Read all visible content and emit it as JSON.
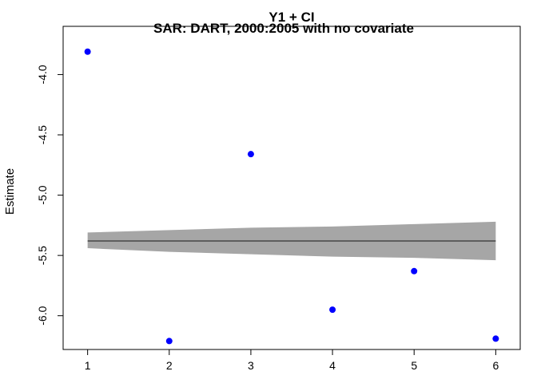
{
  "chart_data": {
    "type": "scatter",
    "title": "Y1 + CI",
    "subtitle": "SAR: DART, 2000:2005 with no covariate",
    "xlabel": "",
    "ylabel": "Estimate",
    "xlim": [
      0.7,
      6.3
    ],
    "ylim": [
      -6.28,
      -3.6
    ],
    "x_ticks": [
      1,
      2,
      3,
      4,
      5,
      6
    ],
    "y_ticks": [
      -4.0,
      -4.5,
      -5.0,
      -5.5,
      -6.0
    ],
    "y_tick_labels": [
      "-4.0",
      "-4.5",
      "-5.0",
      "-5.5",
      "-6.0"
    ],
    "series": [
      {
        "kind": "points",
        "color": "#0000ff",
        "x": [
          1,
          2,
          3,
          4,
          5,
          6
        ],
        "y": [
          -3.81,
          -6.21,
          -4.66,
          -5.95,
          -5.63,
          -6.19
        ]
      },
      {
        "kind": "line",
        "color": "#333333",
        "x": [
          1,
          6
        ],
        "y": [
          -5.38,
          -5.38
        ]
      },
      {
        "kind": "band",
        "color": "#a6a6a6",
        "x": [
          1,
          2,
          3,
          4,
          5,
          6
        ],
        "upper": [
          -5.31,
          -5.29,
          -5.27,
          -5.26,
          -5.24,
          -5.22
        ],
        "lower": [
          -5.44,
          -5.47,
          -5.49,
          -5.51,
          -5.52,
          -5.54
        ]
      }
    ]
  }
}
